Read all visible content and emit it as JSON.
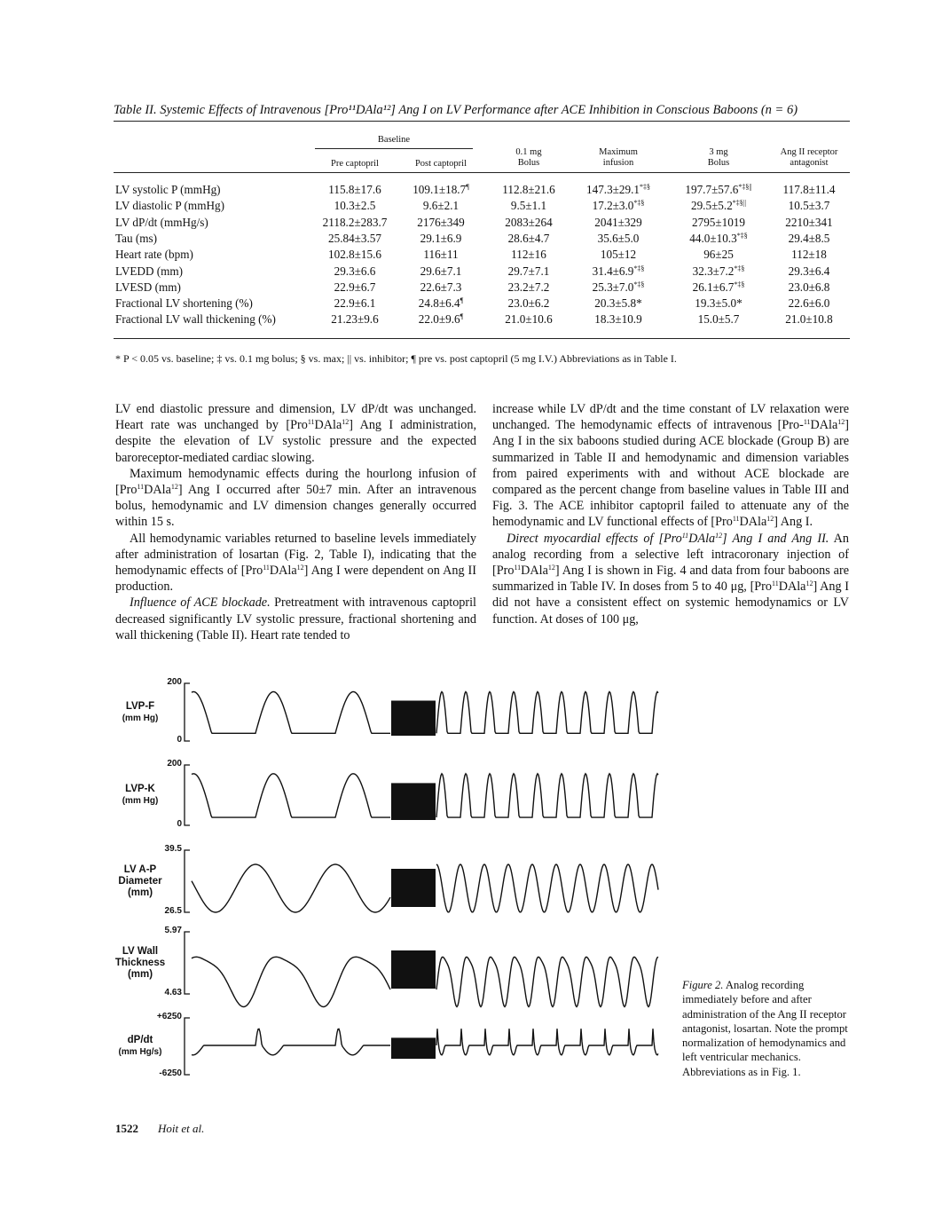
{
  "table": {
    "title": "Table II. Systemic Effects of Intravenous [Pro¹¹DAla¹²] Ang I on LV Performance after ACE Inhibition in Conscious Baboons (n = 6)",
    "group_header": "Baseline",
    "columns": [
      [
        "Pre captopril"
      ],
      [
        "Post captopril"
      ],
      [
        "0.1 mg",
        "Bolus"
      ],
      [
        "Maximum",
        "infusion"
      ],
      [
        "3 mg",
        "Bolus"
      ],
      [
        "Ang II receptor",
        "antagonist"
      ]
    ],
    "rows": [
      {
        "label": "LV systolic P (mmHg)",
        "cells": [
          [
            "115.8±17.6",
            ""
          ],
          [
            "109.1±18.7",
            "¶"
          ],
          [
            "112.8±21.6",
            ""
          ],
          [
            "147.3±29.1",
            "*‡§"
          ],
          [
            "197.7±57.6",
            "*‡§||"
          ],
          [
            "117.8±11.4",
            ""
          ]
        ]
      },
      {
        "label": "LV diastolic P (mmHg)",
        "cells": [
          [
            "10.3±2.5",
            ""
          ],
          [
            "9.6±2.1",
            ""
          ],
          [
            "9.5±1.1",
            ""
          ],
          [
            "17.2±3.0",
            "*‡§"
          ],
          [
            "29.5±5.2",
            "*‡§||"
          ],
          [
            "10.5±3.7",
            ""
          ]
        ]
      },
      {
        "label": "LV dP/dt (mmHg/s)",
        "cells": [
          [
            "2118.2±283.7",
            ""
          ],
          [
            "2176±349",
            ""
          ],
          [
            "2083±264",
            ""
          ],
          [
            "2041±329",
            ""
          ],
          [
            "2795±1019",
            ""
          ],
          [
            "2210±341",
            ""
          ]
        ]
      },
      {
        "label": "Tau (ms)",
        "cells": [
          [
            "25.84±3.57",
            ""
          ],
          [
            "29.1±6.9",
            ""
          ],
          [
            "28.6±4.7",
            ""
          ],
          [
            "35.6±5.0",
            ""
          ],
          [
            "44.0±10.3",
            "*‡§"
          ],
          [
            "29.4±8.5",
            ""
          ]
        ]
      },
      {
        "label": "Heart rate (bpm)",
        "cells": [
          [
            "102.8±15.6",
            ""
          ],
          [
            "116±11",
            ""
          ],
          [
            "112±16",
            ""
          ],
          [
            "105±12",
            ""
          ],
          [
            "96±25",
            ""
          ],
          [
            "112±18",
            ""
          ]
        ]
      },
      {
        "label": "LVEDD (mm)",
        "cells": [
          [
            "29.3±6.6",
            ""
          ],
          [
            "29.6±7.1",
            ""
          ],
          [
            "29.7±7.1",
            ""
          ],
          [
            "31.4±6.9",
            "*‡§"
          ],
          [
            "32.3±7.2",
            "*‡§"
          ],
          [
            "29.3±6.4",
            ""
          ]
        ]
      },
      {
        "label": "LVESD (mm)",
        "cells": [
          [
            "22.9±6.7",
            ""
          ],
          [
            "22.6±7.3",
            ""
          ],
          [
            "23.2±7.2",
            ""
          ],
          [
            "25.3±7.0",
            "*‡§"
          ],
          [
            "26.1±6.7",
            "*‡§"
          ],
          [
            "23.0±6.8",
            ""
          ]
        ]
      },
      {
        "label": "Fractional LV shortening (%)",
        "cells": [
          [
            "22.9±6.1",
            ""
          ],
          [
            "24.8±6.4",
            "¶"
          ],
          [
            "23.0±6.2",
            ""
          ],
          [
            "20.3±5.8*",
            ""
          ],
          [
            "19.3±5.0*",
            ""
          ],
          [
            "22.6±6.0",
            ""
          ]
        ]
      },
      {
        "label": "Fractional LV wall thickening (%)",
        "cells": [
          [
            "21.23±9.6",
            ""
          ],
          [
            "22.0±9.6",
            "¶"
          ],
          [
            "21.0±10.6",
            ""
          ],
          [
            "18.3±10.9",
            ""
          ],
          [
            "15.0±5.7",
            ""
          ],
          [
            "21.0±10.8",
            ""
          ]
        ]
      }
    ],
    "footnote": "* P < 0.05 vs. baseline; ‡ vs. 0.1 mg bolus; § vs. max; || vs. inhibitor; ¶ pre vs. post captopril (5 mg I.V.) Abbreviations as in Table I."
  },
  "body": {
    "left": [
      [
        {
          "t": "LV end diastolic pressure and dimension, LV dP/dt was unchanged. Heart rate was unchanged by [Pro"
        },
        {
          "s": "11"
        },
        {
          "t": "DAla"
        },
        {
          "s": "12"
        },
        {
          "t": "] Ang I administration, despite the elevation of LV systolic pressure and the expected baroreceptor-mediated cardiac slowing."
        }
      ],
      [
        {
          "t": "Maximum hemodynamic effects during the hourlong infusion of [Pro"
        },
        {
          "s": "11"
        },
        {
          "t": "DAla"
        },
        {
          "s": "12"
        },
        {
          "t": "] Ang I occurred after 50±7 min. After an intravenous bolus, hemodynamic and LV dimension changes generally occurred within 15 s."
        }
      ],
      [
        {
          "t": "All hemodynamic variables returned to baseline levels immediately after administration of losartan (Fig. 2, Table I), indicating that the hemodynamic effects of [Pro"
        },
        {
          "s": "11"
        },
        {
          "t": "DAla"
        },
        {
          "s": "12"
        },
        {
          "t": "] Ang I were dependent on Ang II production."
        }
      ],
      [
        {
          "i": "Influence of ACE blockade."
        },
        {
          "t": " Pretreatment with intravenous captopril decreased significantly LV systolic pressure, fractional shortening and wall thickening (Table II). Heart rate tended to"
        }
      ]
    ],
    "right": [
      [
        {
          "t": "increase while LV dP/dt and the time constant of LV relaxation were unchanged. The hemodynamic effects of intravenous [Pro-"
        },
        {
          "s": "11"
        },
        {
          "t": "DAla"
        },
        {
          "s": "12"
        },
        {
          "t": "] Ang I in the six baboons studied during ACE blockade (Group B) are summarized in Table II and hemodynamic and dimension variables from paired experiments with and without ACE blockade are compared as the percent change from baseline values in Table III and Fig. 3. The ACE inhibitor captopril failed to attenuate any of the hemodynamic and LV functional effects of [Pro"
        },
        {
          "s": "11"
        },
        {
          "t": "DAla"
        },
        {
          "s": "12"
        },
        {
          "t": "] Ang I."
        }
      ],
      [
        {
          "i": "Direct myocardial effects of [Pro"
        },
        {
          "si": "11"
        },
        {
          "i": "DAla"
        },
        {
          "si": "12"
        },
        {
          "i": "] Ang I and Ang II."
        },
        {
          "t": " An analog recording from a selective left intracoronary injection of [Pro"
        },
        {
          "s": "11"
        },
        {
          "t": "DAla"
        },
        {
          "s": "12"
        },
        {
          "t": "] Ang I is shown in Fig. 4 and data from four baboons are summarized in Table IV. In doses from 5 to 40 μg, [Pro"
        },
        {
          "s": "11"
        },
        {
          "t": "DAla"
        },
        {
          "s": "12"
        },
        {
          "t": "] Ang I did not have a consistent effect on systemic hemodynamics or LV function. At doses of 100 μg,"
        }
      ]
    ]
  },
  "figure": {
    "traces": [
      {
        "label": [
          "LVP-F",
          "(mm Hg)"
        ],
        "top": "200",
        "bottom": "0",
        "shape": "pressure"
      },
      {
        "label": [
          "LVP-K",
          "(mm Hg)"
        ],
        "top": "200",
        "bottom": "0",
        "shape": "pressure"
      },
      {
        "label": [
          "LV A-P",
          "Diameter",
          "(mm)"
        ],
        "top": "39.5",
        "bottom": "26.5",
        "shape": "diameter"
      },
      {
        "label": [
          "LV Wall",
          "Thickness",
          "(mm)"
        ],
        "top": "5.97",
        "bottom": "4.63",
        "shape": "wall"
      },
      {
        "label": [
          "dP/dt",
          "(mm Hg/s)"
        ],
        "top": "+6250",
        "bottom": "-6250",
        "shape": "dpdt"
      }
    ],
    "caption_label": "Figure 2.",
    "caption": " Analog recording immediately before and after administration of the Ang II receptor antagonist, losartan. Note the prompt normalization of hemodynamics and left ventricular mechanics. Abbreviations as in Fig. 1."
  },
  "footer": {
    "page": "1522",
    "authors": "Hoit et al."
  }
}
